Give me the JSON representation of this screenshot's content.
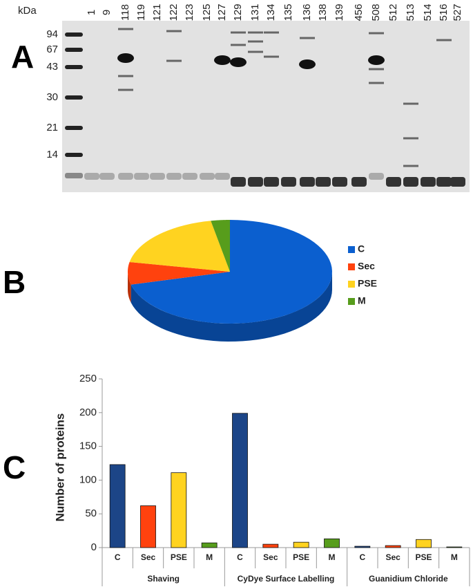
{
  "panel_labels": [
    "A",
    "B",
    "C"
  ],
  "gel": {
    "unit_label": "kDa",
    "markers": [
      94,
      67,
      43,
      30,
      21,
      14
    ],
    "lanes": [
      "1",
      "9",
      "118",
      "119",
      "121",
      "122",
      "123",
      "125",
      "127",
      "129",
      "131",
      "134",
      "135",
      "136",
      "138",
      "139",
      "456",
      "508",
      "512",
      "513",
      "514",
      "516",
      "527"
    ]
  },
  "chart_data": [
    {
      "type": "pie",
      "categories": [
        "C",
        "Sec",
        "PSE",
        "M"
      ],
      "values": [
        71,
        7,
        19,
        3
      ],
      "colors": [
        "#0b5fcf",
        "#ff420e",
        "#ffd320",
        "#579d1c"
      ],
      "legend": "right"
    },
    {
      "type": "bar",
      "ylabel": "Number of proteins",
      "groups": [
        "Shaving",
        "CyDye Surface Labelling",
        "Guanidium Chloride"
      ],
      "series": [
        {
          "name": "C",
          "color": "#1c4587",
          "values": [
            123,
            199,
            2
          ]
        },
        {
          "name": "Sec",
          "color": "#ff420e",
          "values": [
            62,
            5,
            3
          ]
        },
        {
          "name": "PSE",
          "color": "#ffd320",
          "values": [
            111,
            8,
            12
          ]
        },
        {
          "name": "M",
          "color": "#579d1c",
          "values": [
            7,
            13,
            1
          ]
        }
      ],
      "ylim": [
        0,
        250
      ],
      "yticks": [
        0,
        50,
        100,
        150,
        200,
        250
      ],
      "grid": false
    }
  ]
}
